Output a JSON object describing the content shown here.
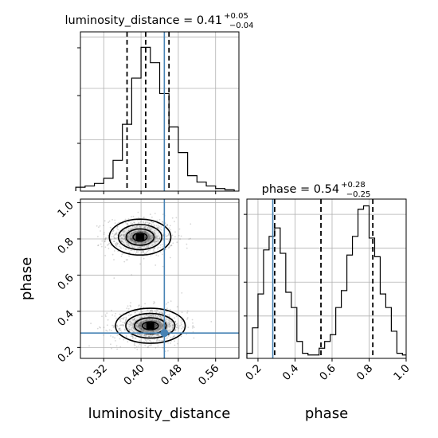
{
  "chart_data": [
    {
      "type": "histogram",
      "panel": "luminosity_distance-marginal",
      "title": {
        "lhs": "luminosity_distance",
        "value": "0.41",
        "upper": "+0.05",
        "lower": "−0.04"
      },
      "x": [
        0.26,
        0.28,
        0.3,
        0.32,
        0.34,
        0.36,
        0.38,
        0.4,
        0.42,
        0.44,
        0.46,
        0.48,
        0.5,
        0.52,
        0.54,
        0.56,
        0.58,
        0.6
      ],
      "values": [
        3,
        4,
        6,
        10,
        24,
        52,
        88,
        112,
        100,
        76,
        50,
        30,
        12,
        7,
        4,
        2,
        1
      ],
      "xlim": [
        0.27,
        0.61
      ],
      "quantiles": [
        0.37,
        0.41,
        0.46
      ],
      "truth": 0.45
    },
    {
      "type": "histogram",
      "panel": "phase-marginal",
      "title": {
        "lhs": "phase",
        "value": "0.54",
        "upper": "+0.28",
        "lower": "−0.25"
      },
      "x": [
        0.14,
        0.17,
        0.2,
        0.23,
        0.26,
        0.29,
        0.32,
        0.35,
        0.38,
        0.41,
        0.44,
        0.47,
        0.5,
        0.53,
        0.56,
        0.59,
        0.62,
        0.65,
        0.68,
        0.71,
        0.74,
        0.77,
        0.8,
        0.83,
        0.86,
        0.89,
        0.92,
        0.95,
        0.98,
        1.01
      ],
      "values": [
        3,
        18,
        38,
        64,
        72,
        77,
        62,
        39,
        30,
        10,
        3,
        2,
        2,
        6,
        10,
        14,
        30,
        40,
        61,
        72,
        88,
        90,
        71,
        60,
        38,
        30,
        16,
        3,
        2
      ],
      "xlim": [
        0.14,
        1.0
      ],
      "quantiles": [
        0.29,
        0.54,
        0.82
      ],
      "truth": 0.28
    },
    {
      "type": "scatter",
      "panel": "joint-density",
      "xlabel": "luminosity_distance",
      "ylabel": "phase",
      "xlim": [
        0.27,
        0.61
      ],
      "ylim": [
        0.14,
        1.02
      ],
      "xticks": [
        "0.32",
        "0.40",
        "0.48",
        "0.56"
      ],
      "yticks": [
        "0.2",
        "0.4",
        "0.6",
        "0.8",
        "1.0"
      ],
      "phase_xticks": [
        "0.2",
        "0.4",
        "0.6",
        "0.8",
        "1.0"
      ],
      "modes": [
        {
          "x": 0.398,
          "y": 0.81,
          "sx": 0.03,
          "sy": 0.045
        },
        {
          "x": 0.42,
          "y": 0.32,
          "sx": 0.034,
          "sy": 0.044
        }
      ],
      "truth": {
        "x": 0.45,
        "y": 0.28
      }
    }
  ]
}
